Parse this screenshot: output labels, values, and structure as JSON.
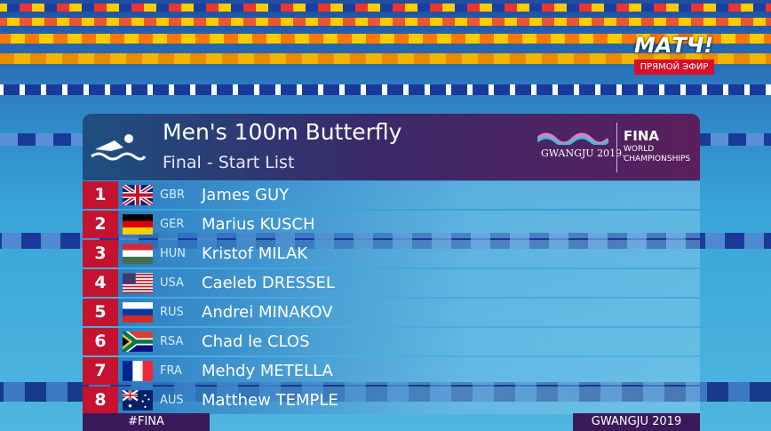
{
  "header": {
    "title": "Men's 100m Butterfly",
    "subtitle": "Final - Start List",
    "event_logo": "GWANGJU 2019.",
    "fina_logo": "FINA",
    "fina_tagline": "WORLD CHAMPIONSHIPS"
  },
  "channel": {
    "logo": "МАТЧ!",
    "live": "ПРЯМОЙ ЭФИР"
  },
  "table": {
    "rows": [
      [
        "1",
        "GBR",
        "James GUY"
      ],
      [
        "2",
        "GER",
        "Marius KUSCH"
      ],
      [
        "3",
        "HUN",
        "Kristof MILAK"
      ],
      [
        "4",
        "USA",
        "Caeleb DRESSEL"
      ],
      [
        "5",
        "RUS",
        "Andrei MINAKOV"
      ],
      [
        "6",
        "RSA",
        "Chad le CLOS"
      ],
      [
        "7",
        "FRA",
        "Mehdy METELLA"
      ],
      [
        "8",
        "AUS",
        "Matthew TEMPLE"
      ]
    ]
  },
  "footer": {
    "left": "#FINA",
    "right": "GWANGJU 2019"
  }
}
